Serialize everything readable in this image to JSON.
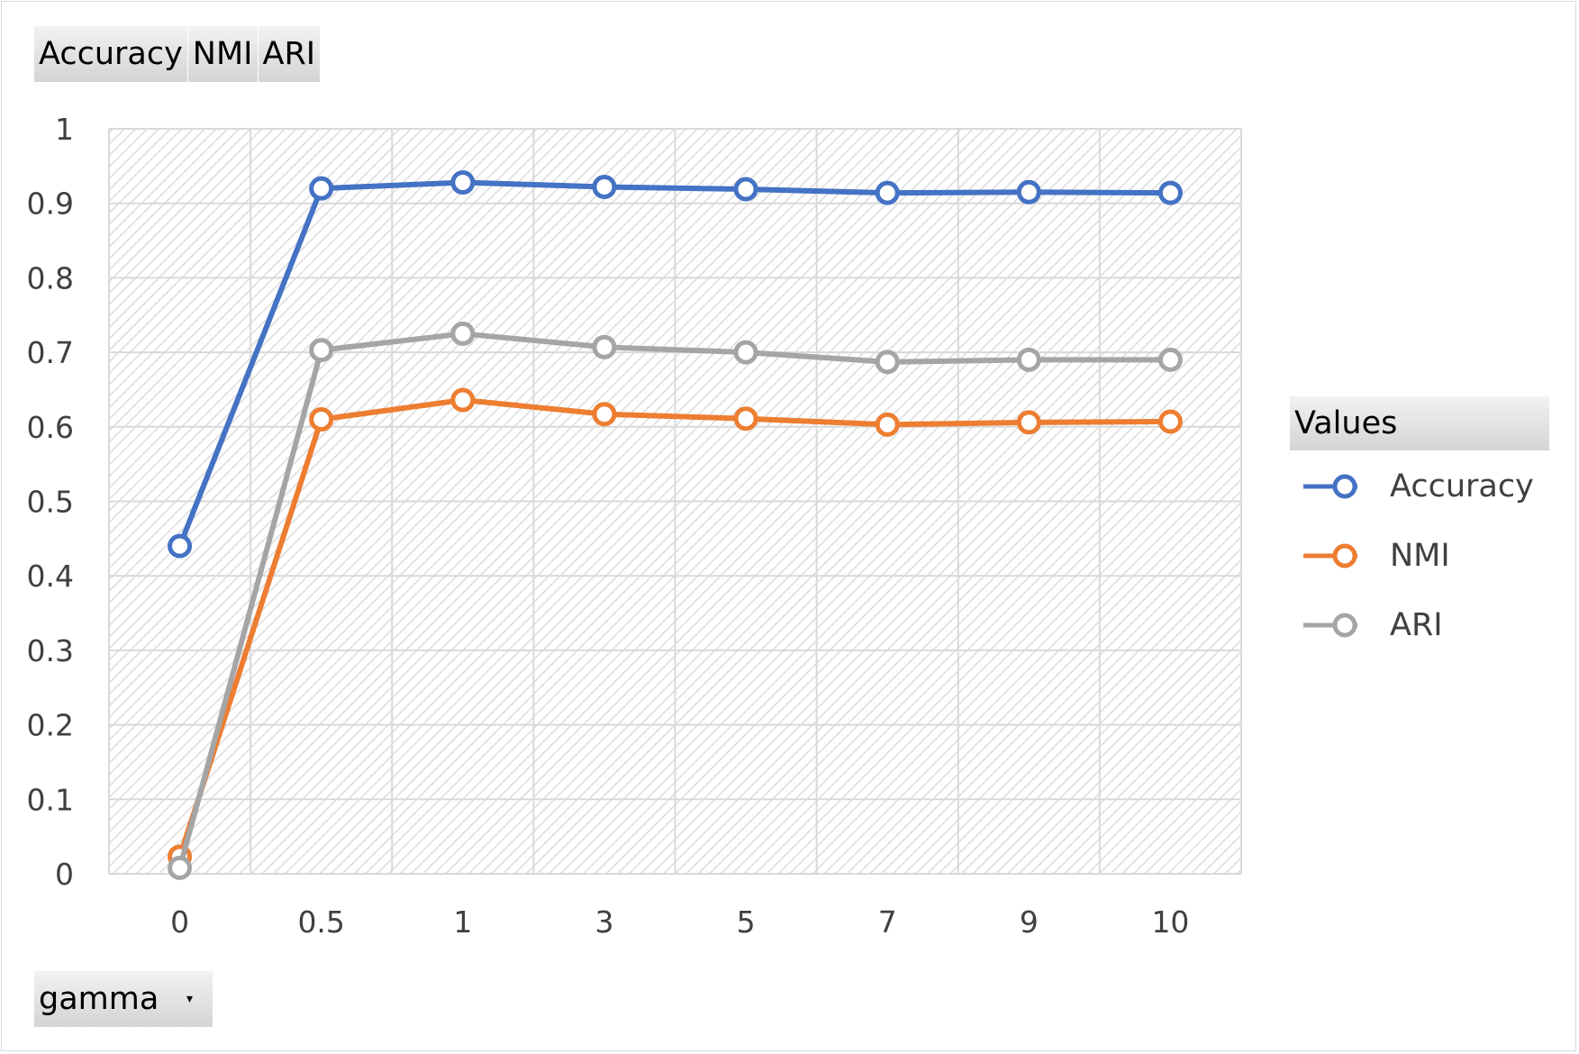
{
  "field_buttons": [
    "Accuracy",
    "NMI",
    "ARI"
  ],
  "axis_field": {
    "label": "gamma",
    "dropdown": "▾"
  },
  "legend": {
    "title": "Values"
  },
  "colors": {
    "Accuracy": "#4472c4",
    "NMI": "#ed7d31",
    "ARI": "#a5a5a5",
    "grid": "#d9d9d9"
  },
  "chart_data": {
    "type": "line",
    "categories": [
      "0",
      "0.5",
      "1",
      "3",
      "5",
      "7",
      "9",
      "10"
    ],
    "series": [
      {
        "name": "Accuracy",
        "values": [
          0.44,
          0.92,
          0.928,
          0.922,
          0.919,
          0.914,
          0.915,
          0.914
        ]
      },
      {
        "name": "NMI",
        "values": [
          0.023,
          0.61,
          0.636,
          0.617,
          0.611,
          0.603,
          0.606,
          0.607
        ]
      },
      {
        "name": "ARI",
        "values": [
          0.008,
          0.703,
          0.725,
          0.707,
          0.7,
          0.687,
          0.69,
          0.69
        ]
      }
    ],
    "ylim": [
      0,
      1
    ],
    "yticks": [
      "0",
      "0.1",
      "0.2",
      "0.3",
      "0.4",
      "0.5",
      "0.6",
      "0.7",
      "0.8",
      "0.9",
      "1"
    ],
    "grid": true,
    "legend_position": "right"
  }
}
